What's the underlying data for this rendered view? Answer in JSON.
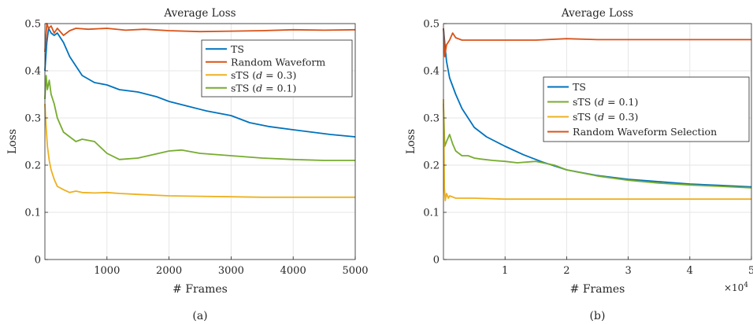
{
  "chart_data": [
    {
      "type": "line",
      "title": "Average Loss",
      "xlabel": "# Frames",
      "ylabel": "Loss",
      "caption": "(a)",
      "xlim": [
        0,
        5000
      ],
      "ylim": [
        0,
        0.5
      ],
      "xticks": [
        1000,
        2000,
        3000,
        4000,
        5000
      ],
      "xtick_labels": [
        "1000",
        "2000",
        "3000",
        "4000",
        "5000"
      ],
      "yticks": [
        0,
        0.1,
        0.2,
        0.3,
        0.4,
        0.5
      ],
      "ytick_labels": [
        "0",
        "0.1",
        "0.2",
        "0.3",
        "0.4",
        "0.5"
      ],
      "grid": true,
      "legend_position": "top-right",
      "series": [
        {
          "name": "TS",
          "color": "#0072BD",
          "x": [
            0,
            30,
            60,
            100,
            150,
            200,
            300,
            400,
            500,
            600,
            800,
            1000,
            1200,
            1500,
            1800,
            2000,
            2300,
            2600,
            3000,
            3300,
            3600,
            4000,
            4300,
            4600,
            5000
          ],
          "y": [
            0.4,
            0.46,
            0.49,
            0.48,
            0.475,
            0.48,
            0.46,
            0.43,
            0.41,
            0.39,
            0.375,
            0.37,
            0.36,
            0.355,
            0.345,
            0.335,
            0.325,
            0.315,
            0.305,
            0.29,
            0.282,
            0.275,
            0.27,
            0.265,
            0.26
          ]
        },
        {
          "name": "Random Waveform",
          "color": "#D95319",
          "x": [
            0,
            30,
            60,
            100,
            150,
            200,
            300,
            400,
            500,
            700,
            1000,
            1300,
            1600,
            2000,
            2500,
            3000,
            3500,
            4000,
            4500,
            5000
          ],
          "y": [
            0.44,
            0.5,
            0.49,
            0.495,
            0.48,
            0.49,
            0.475,
            0.485,
            0.49,
            0.488,
            0.49,
            0.486,
            0.488,
            0.485,
            0.483,
            0.484,
            0.485,
            0.487,
            0.486,
            0.487
          ]
        },
        {
          "name": "sTS (d = 0.3)",
          "name_parts": [
            "sTS (",
            "d",
            " = 0.3)"
          ],
          "color": "#EDB120",
          "x": [
            0,
            20,
            40,
            70,
            100,
            150,
            200,
            300,
            400,
            500,
            600,
            800,
            1000,
            1200,
            1500,
            2000,
            2500,
            3000,
            3500,
            4000,
            4500,
            5000
          ],
          "y": [
            0.33,
            0.28,
            0.24,
            0.21,
            0.19,
            0.17,
            0.155,
            0.148,
            0.142,
            0.145,
            0.142,
            0.141,
            0.142,
            0.14,
            0.138,
            0.135,
            0.134,
            0.133,
            0.132,
            0.132,
            0.132,
            0.132
          ]
        },
        {
          "name": "sTS (d = 0.1)",
          "name_parts": [
            "sTS (",
            "d",
            " = 0.1)"
          ],
          "color": "#77AC30",
          "x": [
            0,
            20,
            40,
            70,
            100,
            150,
            200,
            300,
            400,
            500,
            600,
            800,
            1000,
            1200,
            1500,
            2000,
            2200,
            2500,
            3000,
            3500,
            4000,
            4500,
            5000
          ],
          "y": [
            0.34,
            0.39,
            0.36,
            0.38,
            0.35,
            0.33,
            0.3,
            0.27,
            0.26,
            0.25,
            0.255,
            0.25,
            0.225,
            0.212,
            0.215,
            0.23,
            0.232,
            0.225,
            0.22,
            0.215,
            0.212,
            0.21,
            0.21
          ]
        }
      ]
    },
    {
      "type": "line",
      "title": "Average Loss",
      "xlabel": "# Frames",
      "ylabel": "Loss",
      "caption": "(b)",
      "xlim": [
        0,
        50000
      ],
      "ylim": [
        0,
        0.5
      ],
      "xticks": [
        10000,
        20000,
        30000,
        40000,
        50000
      ],
      "xtick_labels": [
        "1",
        "2",
        "3",
        "4",
        "5"
      ],
      "x_exponent_label": "×10",
      "x_exponent_power": "4",
      "yticks": [
        0,
        0.1,
        0.2,
        0.3,
        0.4,
        0.5
      ],
      "ytick_labels": [
        "0",
        "0.1",
        "0.2",
        "0.3",
        "0.4",
        "0.5"
      ],
      "grid": true,
      "legend_position": "center-right",
      "series": [
        {
          "name": "TS",
          "color": "#0072BD",
          "x": [
            0,
            200,
            500,
            1000,
            2000,
            3000,
            4000,
            5000,
            7000,
            10000,
            13000,
            16000,
            20000,
            25000,
            30000,
            35000,
            40000,
            45000,
            50000
          ],
          "y": [
            0.49,
            0.46,
            0.42,
            0.385,
            0.35,
            0.32,
            0.3,
            0.28,
            0.26,
            0.24,
            0.222,
            0.207,
            0.19,
            0.178,
            0.17,
            0.165,
            0.16,
            0.157,
            0.154
          ]
        },
        {
          "name": "sTS (d = 0.1)",
          "name_parts": [
            "sTS (",
            "d",
            " = 0.1)"
          ],
          "color": "#77AC30",
          "x": [
            0,
            200,
            500,
            1000,
            1500,
            2000,
            3000,
            4000,
            5000,
            6000,
            8000,
            10000,
            12000,
            15000,
            18000,
            20000,
            25000,
            30000,
            35000,
            40000,
            45000,
            50000
          ],
          "y": [
            0.33,
            0.24,
            0.25,
            0.265,
            0.245,
            0.23,
            0.22,
            0.22,
            0.215,
            0.213,
            0.21,
            0.208,
            0.205,
            0.208,
            0.2,
            0.19,
            0.177,
            0.168,
            0.162,
            0.158,
            0.155,
            0.152
          ]
        },
        {
          "name": "sTS (d = 0.3)",
          "name_parts": [
            "sTS (",
            "d",
            " = 0.3)"
          ],
          "color": "#EDB120",
          "x": [
            0,
            150,
            300,
            500,
            800,
            1000,
            2000,
            3000,
            5000,
            10000,
            20000,
            30000,
            40000,
            50000
          ],
          "y": [
            0.34,
            0.15,
            0.125,
            0.14,
            0.13,
            0.135,
            0.13,
            0.13,
            0.13,
            0.128,
            0.128,
            0.128,
            0.128,
            0.128
          ]
        },
        {
          "name": "Random Waveform Selection",
          "color": "#D95319",
          "x": [
            0,
            200,
            500,
            1000,
            1500,
            2000,
            3000,
            5000,
            10000,
            15000,
            20000,
            25000,
            30000,
            35000,
            40000,
            45000,
            50000
          ],
          "y": [
            0.49,
            0.43,
            0.455,
            0.465,
            0.48,
            0.47,
            0.465,
            0.465,
            0.465,
            0.465,
            0.468,
            0.466,
            0.466,
            0.466,
            0.466,
            0.466,
            0.466
          ]
        }
      ]
    }
  ]
}
